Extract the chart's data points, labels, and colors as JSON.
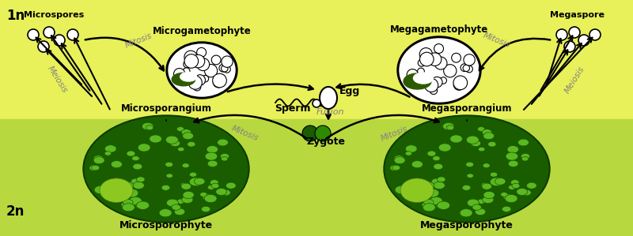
{
  "bg_top_color": "#e8f05a",
  "bg_bottom_color": "#b8d840",
  "label_1n": "1n",
  "label_2n": "2n",
  "title_micro_gameto": "Microgametophyte",
  "title_mega_gameto": "Megagametophyte",
  "label_microspores": "Microspores",
  "label_megaspore": "Megaspore",
  "label_microsporangium": "Microsporangium",
  "label_megasporangium": "Megasporangium",
  "label_microsporophyte": "Microsporophyte",
  "label_megasporophyte": "Megasporophyte",
  "label_sperm": "Sperm",
  "label_egg": "Egg",
  "label_fusion": "Fusion",
  "label_zygote": "Zygote",
  "label_mitosis": "Mitosis",
  "label_meiosis": "Meiosis",
  "dark_green": "#1a5c00",
  "medium_green": "#2d8a00",
  "light_green_cell": "#5ab820",
  "very_light_green": "#8cd840",
  "black": "#000000",
  "white": "#ffffff",
  "gray_label": "#808080"
}
